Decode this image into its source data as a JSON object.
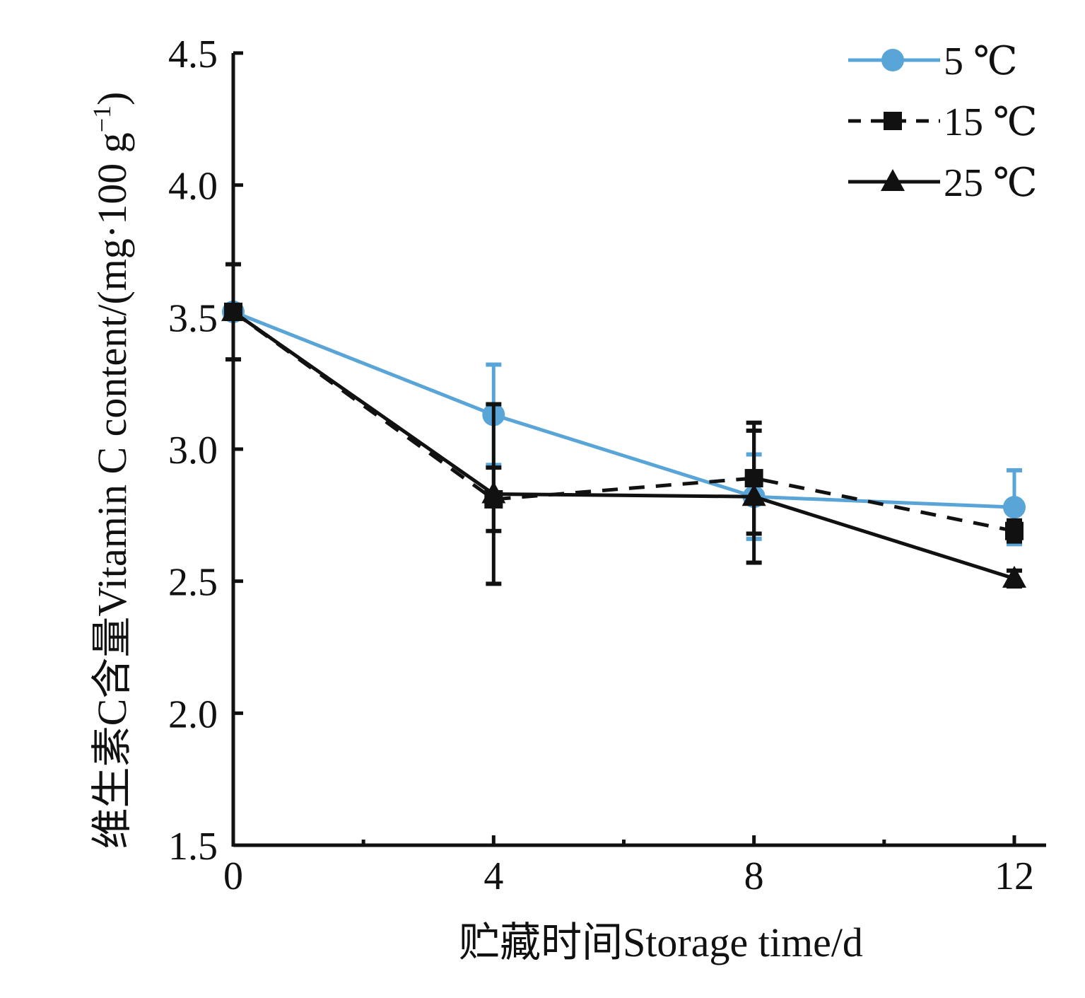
{
  "chart_data": {
    "type": "line",
    "title": "",
    "xlabel": "贮藏时间Storage time/d",
    "ylabel_main": "维生素C含量Vitamin C content/(mg·100 g",
    "ylabel_sup": "−1",
    "ylabel_close": ")",
    "xlim": [
      0,
      12
    ],
    "ylim": [
      1.5,
      4.5
    ],
    "xticks": [
      0,
      4,
      8,
      12
    ],
    "xtick_labels": [
      "0",
      "4",
      "8",
      "12"
    ],
    "xminor": [
      2,
      6,
      10
    ],
    "yticks": [
      1.5,
      2.0,
      2.5,
      3.0,
      3.5,
      4.0,
      4.5
    ],
    "ytick_labels": [
      "1.5",
      "2.0",
      "2.5",
      "3.0",
      "3.5",
      "4.0",
      "4.5"
    ],
    "grid": false,
    "legend_position": "top-right",
    "x": [
      0,
      4,
      8,
      12
    ],
    "series": [
      {
        "name": "5 ℃",
        "color": "#5aa5d8",
        "dash": "solid",
        "marker": "circle",
        "values": [
          3.52,
          3.13,
          2.82,
          2.78
        ],
        "errors": [
          0.0,
          0.19,
          0.16,
          0.14
        ]
      },
      {
        "name": "15 ℃",
        "color": "#111111",
        "dash": "dashed",
        "marker": "square",
        "values": [
          3.52,
          2.81,
          2.89,
          2.69
        ],
        "errors": [
          0.0,
          0.12,
          0.21,
          0.04
        ]
      },
      {
        "name": "25 ℃",
        "color": "#111111",
        "dash": "solid",
        "marker": "triangle",
        "values": [
          3.52,
          2.83,
          2.82,
          2.51
        ],
        "errors": [
          0.18,
          0.34,
          0.25,
          0.03
        ]
      }
    ]
  }
}
